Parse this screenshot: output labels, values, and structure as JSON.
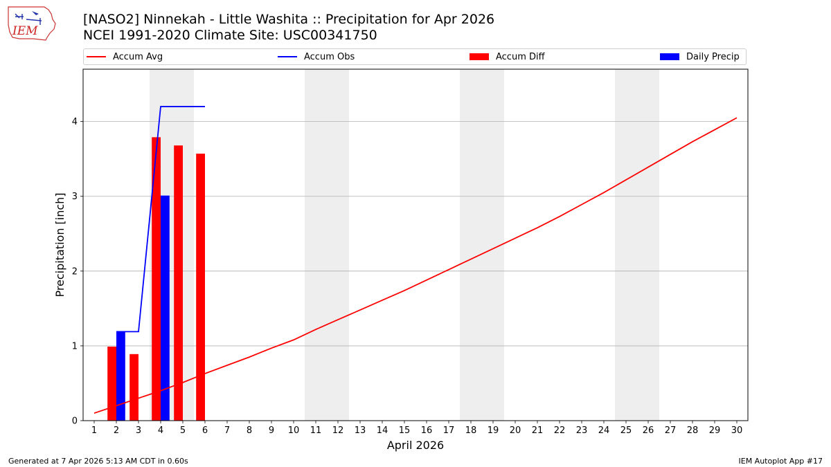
{
  "header": {
    "title_line1": "[NASO2] Ninnekah - Little Washita :: Precipitation for Apr 2026",
    "title_line2": "NCEI 1991-2020 Climate Site: USC00341750",
    "logo_text": "IEM"
  },
  "footer": {
    "left": "Generated at 7 Apr 2026 5:13 AM CDT in 0.60s",
    "right": "IEM Autoplot App #17"
  },
  "legend": {
    "placement": "top",
    "items": [
      {
        "label": "Accum Avg",
        "kind": "line",
        "color": "#ff0000"
      },
      {
        "label": "Accum Obs",
        "kind": "line",
        "color": "#0000ff"
      },
      {
        "label": "Accum Diff",
        "kind": "bar",
        "color": "#ff0000"
      },
      {
        "label": "Daily Precip",
        "kind": "bar",
        "color": "#0000ff"
      }
    ]
  },
  "chart_data": {
    "type": "bar",
    "xlabel": "April 2026",
    "ylabel": "Precipitation [inch]",
    "xlim": [
      0.5,
      30.5
    ],
    "ylim": [
      0,
      4.7
    ],
    "x_ticks": [
      1,
      2,
      3,
      4,
      5,
      6,
      7,
      8,
      9,
      10,
      11,
      12,
      13,
      14,
      15,
      16,
      17,
      18,
      19,
      20,
      21,
      22,
      23,
      24,
      25,
      26,
      27,
      28,
      29,
      30
    ],
    "y_ticks": [
      0,
      1,
      2,
      3,
      4
    ],
    "grid": "horizontal",
    "weekend_shading": [
      [
        3.5,
        5.5
      ],
      [
        10.5,
        12.5
      ],
      [
        17.5,
        19.5
      ],
      [
        24.5,
        26.5
      ]
    ],
    "shading_color": "#eeeeee",
    "accum_avg": {
      "name": "Accum Avg",
      "color": "#ff0000",
      "x": [
        1,
        2,
        3,
        4,
        5,
        6,
        7,
        8,
        9,
        10,
        11,
        12,
        13,
        14,
        15,
        16,
        17,
        18,
        19,
        20,
        21,
        22,
        23,
        24,
        25,
        26,
        27,
        28,
        29,
        30
      ],
      "y": [
        0.1,
        0.2,
        0.3,
        0.4,
        0.51,
        0.63,
        0.74,
        0.85,
        0.97,
        1.08,
        1.22,
        1.35,
        1.48,
        1.61,
        1.74,
        1.88,
        2.02,
        2.16,
        2.3,
        2.44,
        2.58,
        2.73,
        2.89,
        3.05,
        3.22,
        3.39,
        3.56,
        3.73,
        3.89,
        4.05
      ]
    },
    "accum_obs": {
      "name": "Accum Obs",
      "color": "#0000ff",
      "x": [
        2,
        3,
        4,
        5,
        6
      ],
      "y": [
        1.19,
        1.19,
        4.2,
        4.2,
        4.2
      ]
    },
    "accum_diff": {
      "name": "Accum Diff",
      "color": "#ff0000",
      "x": [
        2,
        3,
        4,
        5,
        6
      ],
      "y": [
        0.99,
        0.89,
        3.79,
        3.68,
        3.57
      ]
    },
    "daily_precip": {
      "name": "Daily Precip",
      "color": "#0000ff",
      "x": [
        2,
        4
      ],
      "y": [
        1.19,
        3.01
      ]
    }
  }
}
